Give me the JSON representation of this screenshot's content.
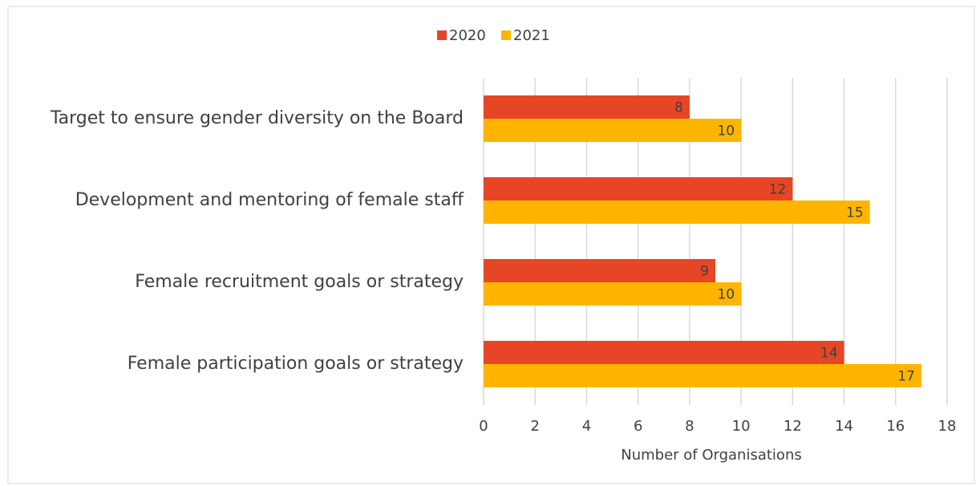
{
  "chart_data": {
    "type": "barh",
    "categories": [
      "Target to ensure gender diversity on the Board",
      "Development and mentoring of female staff",
      "Female recruitment goals or strategy",
      "Female participation goals or strategy"
    ],
    "series": [
      {
        "name": "2020",
        "color": "#e64626",
        "values": [
          8,
          12,
          9,
          14
        ]
      },
      {
        "name": "2021",
        "color": "#ffb500",
        "values": [
          10,
          15,
          10,
          17
        ]
      }
    ],
    "xlim": [
      0,
      18
    ],
    "xticks": [
      0,
      2,
      4,
      6,
      8,
      10,
      12,
      14,
      16,
      18
    ],
    "xlabel": "Number of Organisations",
    "grid": true,
    "legend": "top"
  }
}
